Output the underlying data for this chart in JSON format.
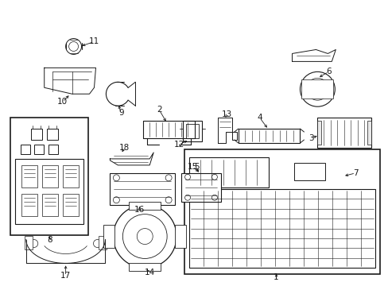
{
  "bg_color": "#ffffff",
  "line_color": "#1a1a1a",
  "fig_width": 4.89,
  "fig_height": 3.6,
  "dpi": 100,
  "label_fontsize": 7.5,
  "lw": 0.7
}
